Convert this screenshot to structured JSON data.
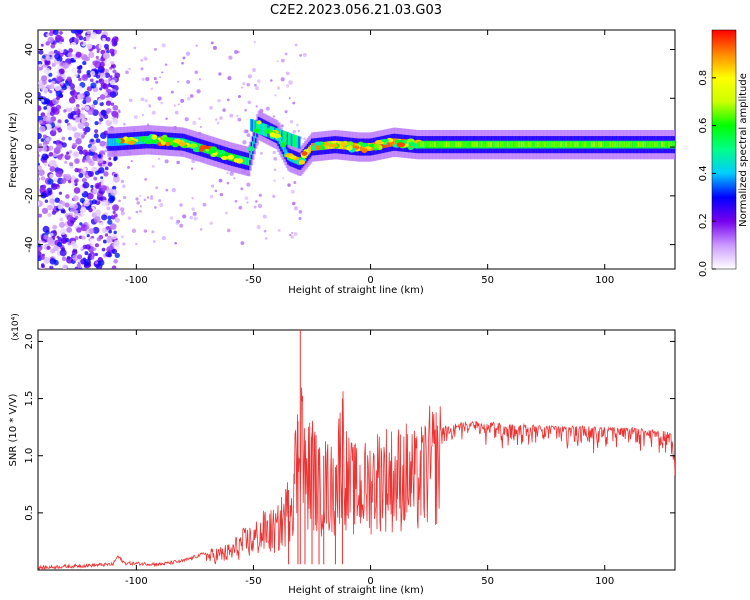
{
  "figure": {
    "title": "C2E2.2023.056.21.03.G03"
  },
  "chart_data": [
    {
      "type": "heatmap",
      "xlabel": "Height of straight line (km)",
      "ylabel": "Frequency (Hz)",
      "xlim": [
        -142,
        130
      ],
      "ylim": [
        -50,
        48
      ],
      "x_ticks": [
        -100,
        -50,
        0,
        50,
        100
      ],
      "y_ticks": [
        -40,
        -20,
        0,
        20,
        40
      ],
      "colorbar": {
        "label": "Normalized spectral amplitude",
        "range": [
          0,
          1
        ],
        "ticks": [
          0.0,
          0.2,
          0.4,
          0.6,
          0.8
        ],
        "colormap": [
          "#ffffff",
          "#cc99ff",
          "#7700ee",
          "#0000ff",
          "#00ccff",
          "#00ff88",
          "#00ff00",
          "#ccff00",
          "#ffff00",
          "#ff8800",
          "#ff0000"
        ]
      },
      "ridge": {
        "description_points_x": [
          -110,
          -95,
          -80,
          -70,
          -60,
          -52,
          -48,
          -40,
          -35,
          -30,
          -25,
          -15,
          -5,
          0,
          5,
          10,
          20,
          50,
          80,
          100,
          130
        ],
        "frequency": [
          2,
          3,
          2,
          -1,
          -4,
          -6,
          9,
          5,
          -4,
          -6,
          0,
          1,
          0,
          0,
          1,
          2,
          1,
          1,
          1,
          1,
          1
        ],
        "amplitude": [
          0.4,
          0.45,
          0.5,
          0.55,
          0.6,
          0.5,
          0.4,
          0.45,
          0.4,
          0.5,
          0.9,
          0.8,
          0.9,
          0.85,
          0.95,
          0.9,
          0.6,
          0.55,
          0.55,
          0.55,
          0.55
        ]
      }
    },
    {
      "type": "line",
      "xlabel": "Height of straight line (km)",
      "ylabel": "SNR (10 * V/V)",
      "y_scale_label": "(x10⁴)",
      "xlim": [
        -142,
        130
      ],
      "ylim": [
        0,
        2.1
      ],
      "x_ticks": [
        -100,
        -50,
        0,
        50,
        100
      ],
      "y_ticks": [
        0.5,
        1.0,
        1.5,
        2.0
      ],
      "series": [
        {
          "color": "#ee3333",
          "x": [
            -142,
            -120,
            -110,
            -108,
            -105,
            -90,
            -80,
            -70,
            -60,
            -55,
            -50,
            -45,
            -40,
            -35,
            -31,
            -30,
            -28,
            -25,
            -22,
            -20,
            -15,
            -12,
            -10,
            -5,
            0,
            5,
            10,
            15,
            20,
            25,
            30,
            35,
            40,
            50,
            60,
            70,
            80,
            90,
            100,
            110,
            120,
            128,
            130
          ],
          "y": [
            0.02,
            0.04,
            0.05,
            0.12,
            0.06,
            0.05,
            0.08,
            0.15,
            0.2,
            0.3,
            0.35,
            0.45,
            0.45,
            0.7,
            1.3,
            2.1,
            1.0,
            1.2,
            0.9,
            1.0,
            0.9,
            1.5,
            1.0,
            0.9,
            1.0,
            1.1,
            1.05,
            1.1,
            1.0,
            1.2,
            1.25,
            1.28,
            1.3,
            1.3,
            1.28,
            1.27,
            1.26,
            1.26,
            1.25,
            1.25,
            1.23,
            1.22,
            1.0
          ]
        }
      ]
    }
  ]
}
